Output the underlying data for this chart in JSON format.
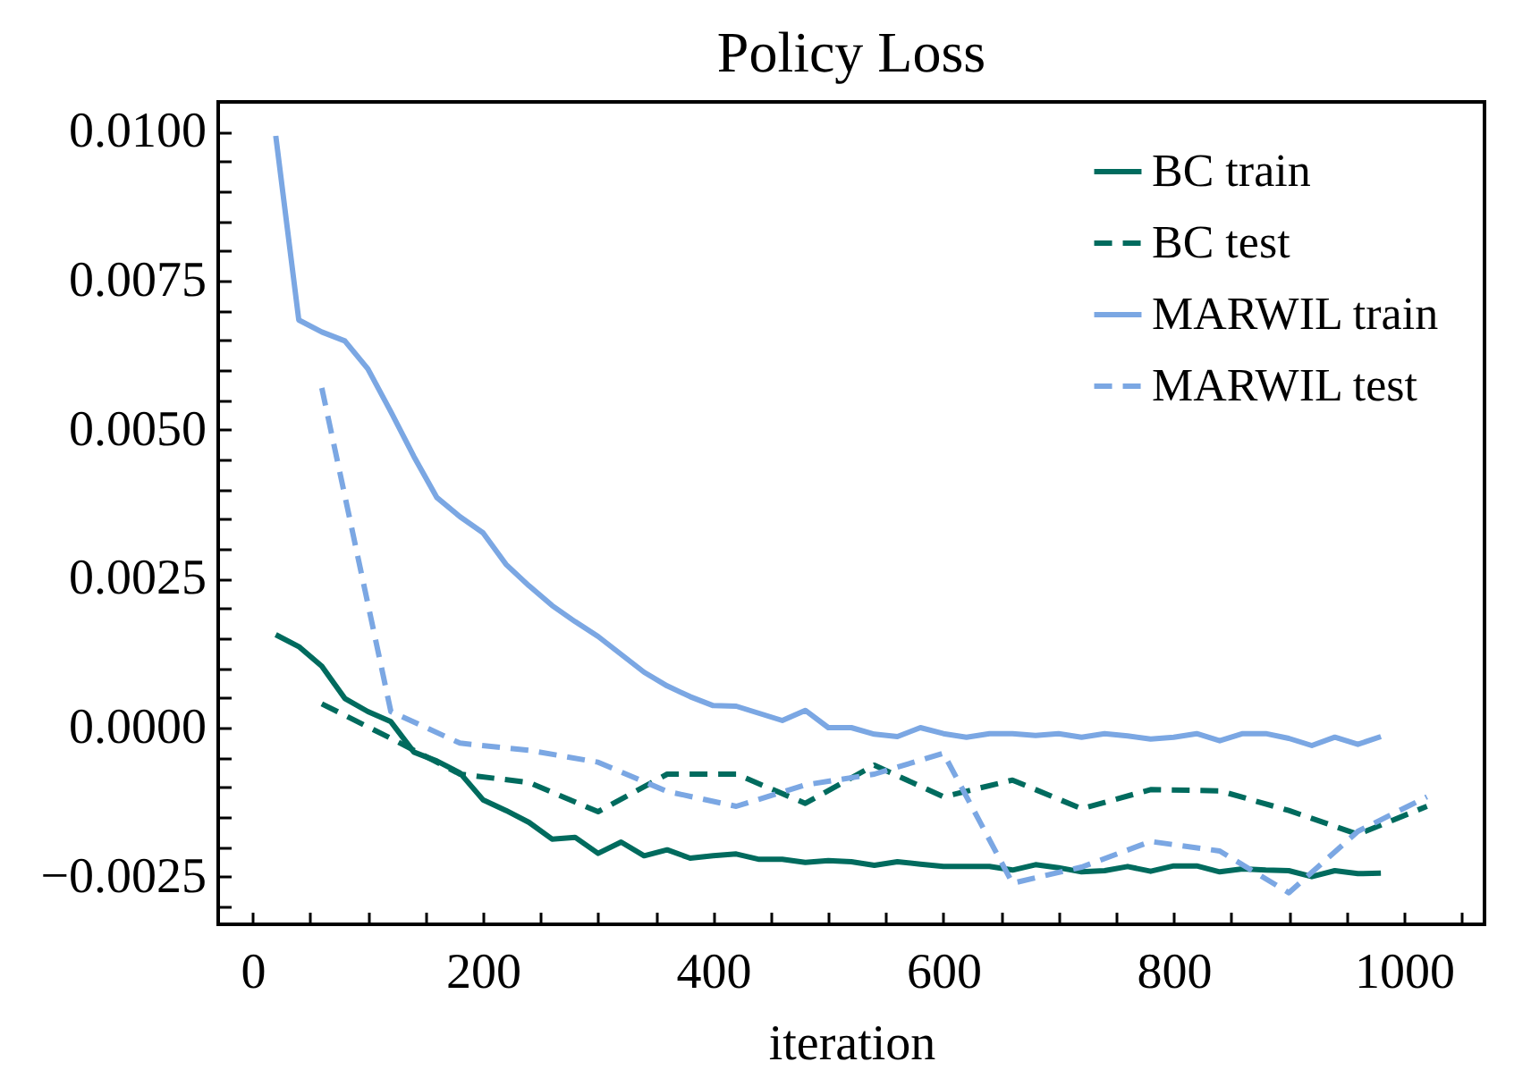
{
  "chart_data": {
    "type": "line",
    "title": "Policy Loss",
    "xlabel": "iteration",
    "xlim": [
      -30,
      1070
    ],
    "xticks": [
      0,
      {
        "value": 50,
        "label": null
      },
      {
        "value": 100,
        "label": null
      },
      {
        "value": 150,
        "label": null
      },
      200,
      {
        "value": 250,
        "label": null
      },
      {
        "value": 300,
        "label": null
      },
      {
        "value": 350,
        "label": null
      },
      400,
      {
        "value": 450,
        "label": null
      },
      {
        "value": 500,
        "label": null
      },
      {
        "value": 550,
        "label": null
      },
      600,
      {
        "value": 650,
        "label": null
      },
      {
        "value": 700,
        "label": null
      },
      {
        "value": 750,
        "label": null
      },
      800,
      {
        "value": 850,
        "label": null
      },
      {
        "value": 900,
        "label": null
      },
      {
        "value": 950,
        "label": null
      },
      1000,
      {
        "value": 1050,
        "label": null
      }
    ],
    "ylim": [
      -0.0033,
      0.0105
    ],
    "yticks": [
      {
        "value": -0.003,
        "label": null
      },
      {
        "value": -0.0025,
        "label": "−0.0025"
      },
      {
        "value": -0.002,
        "label": null
      },
      {
        "value": -0.0015,
        "label": null
      },
      {
        "value": -0.001,
        "label": null
      },
      {
        "value": -0.0005,
        "label": null
      },
      {
        "value": 0,
        "label": "0.0000"
      },
      {
        "value": 0.0005,
        "label": null
      },
      {
        "value": 0.001,
        "label": null
      },
      {
        "value": 0.0015,
        "label": null
      },
      {
        "value": 0.002,
        "label": null
      },
      {
        "value": 0.0025,
        "label": "0.0025"
      },
      {
        "value": 0.003,
        "label": null
      },
      {
        "value": 0.0035,
        "label": null
      },
      {
        "value": 0.004,
        "label": null
      },
      {
        "value": 0.0045,
        "label": null
      },
      {
        "value": 0.005,
        "label": "0.0050"
      },
      {
        "value": 0.0055,
        "label": null
      },
      {
        "value": 0.006,
        "label": null
      },
      {
        "value": 0.0065,
        "label": null
      },
      {
        "value": 0.007,
        "label": null
      },
      {
        "value": 0.0075,
        "label": "0.0075"
      },
      {
        "value": 0.008,
        "label": null
      },
      {
        "value": 0.0085,
        "label": null
      },
      {
        "value": 0.009,
        "label": null
      },
      {
        "value": 0.0095,
        "label": null
      },
      {
        "value": 0.01,
        "label": "0.0100"
      }
    ],
    "legend": "top right",
    "series": [
      {
        "name": "BC train",
        "color": "#006b5e",
        "line_style": "solid",
        "x": [
          20,
          40,
          60,
          80,
          100,
          120,
          140,
          160,
          180,
          200,
          220,
          240,
          260,
          280,
          300,
          320,
          340,
          360,
          380,
          400,
          420,
          440,
          460,
          480,
          500,
          520,
          540,
          560,
          580,
          600,
          620,
          640,
          660,
          680,
          700,
          720,
          740,
          760,
          780,
          800,
          820,
          840,
          860,
          880,
          900,
          920,
          940,
          960,
          980
        ],
        "values": [
          0.00156,
          0.00136,
          0.00103,
          0.00049,
          0.00027,
          0.0001,
          -0.00041,
          -0.00056,
          -0.00076,
          -0.00121,
          -0.00139,
          -0.00159,
          -0.00187,
          -0.00184,
          -0.00211,
          -0.00192,
          -0.00215,
          -0.00205,
          -0.00219,
          -0.00215,
          -0.00212,
          -0.00221,
          -0.00221,
          -0.00226,
          -0.00223,
          -0.00225,
          -0.00231,
          -0.00225,
          -0.00229,
          -0.00233,
          -0.00233,
          -0.00233,
          -0.00239,
          -0.0023,
          -0.00235,
          -0.00242,
          -0.0024,
          -0.00233,
          -0.00241,
          -0.00232,
          -0.00232,
          -0.00242,
          -0.00237,
          -0.00239,
          -0.0024,
          -0.0025,
          -0.0024,
          -0.00245,
          -0.00244
        ]
      },
      {
        "name": "BC test",
        "color": "#006b5e",
        "line_style": "dashed",
        "x": [
          60,
          120,
          180,
          240,
          300,
          360,
          420,
          480,
          540,
          600,
          660,
          720,
          780,
          840,
          900,
          960,
          1020
        ],
        "values": [
          0.0004,
          -0.00018,
          -0.00078,
          -0.00092,
          -0.00141,
          -0.00078,
          -0.00078,
          -0.00127,
          -0.00063,
          -0.00116,
          -0.00088,
          -0.00136,
          -0.00104,
          -0.00106,
          -0.00139,
          -0.00179,
          -0.00132
        ]
      },
      {
        "name": "MARWIL train",
        "color": "#7ba7e3",
        "line_style": "solid",
        "x": [
          20,
          40,
          60,
          80,
          100,
          120,
          140,
          160,
          180,
          200,
          220,
          240,
          260,
          280,
          300,
          320,
          340,
          360,
          380,
          400,
          420,
          440,
          460,
          480,
          500,
          520,
          540,
          560,
          580,
          600,
          620,
          640,
          660,
          680,
          700,
          720,
          740,
          760,
          780,
          800,
          820,
          840,
          860,
          880,
          900,
          920,
          940,
          960,
          980
        ],
        "values": [
          0.00993,
          0.00684,
          0.00664,
          0.00649,
          0.00602,
          0.0053,
          0.00455,
          0.00386,
          0.00354,
          0.00327,
          0.00274,
          0.00238,
          0.00205,
          0.00178,
          0.00153,
          0.00123,
          0.00093,
          0.0007,
          0.00052,
          0.00037,
          0.00036,
          0.00024,
          0.00012,
          0.00029,
          0,
          0,
          -0.00011,
          -0.00015,
          0,
          -0.0001,
          -0.00016,
          -0.0001,
          -0.0001,
          -0.00013,
          -0.0001,
          -0.00016,
          -0.0001,
          -0.00014,
          -0.00019,
          -0.00016,
          -0.0001,
          -0.00022,
          -0.0001,
          -0.0001,
          -0.00018,
          -0.0003,
          -0.00016,
          -0.00028,
          -0.00015
        ]
      },
      {
        "name": "MARWIL test",
        "color": "#7ba7e3",
        "line_style": "dashed",
        "x": [
          60,
          120,
          180,
          240,
          300,
          360,
          420,
          480,
          540,
          600,
          660,
          720,
          780,
          840,
          900,
          960,
          1020
        ],
        "values": [
          0.0057,
          0.00027,
          -0.00026,
          -0.00038,
          -0.00058,
          -0.00107,
          -0.00132,
          -0.00096,
          -0.00078,
          -0.00043,
          -0.00261,
          -0.00234,
          -0.00191,
          -0.00207,
          -0.00277,
          -0.00174,
          -0.00116
        ]
      }
    ]
  }
}
